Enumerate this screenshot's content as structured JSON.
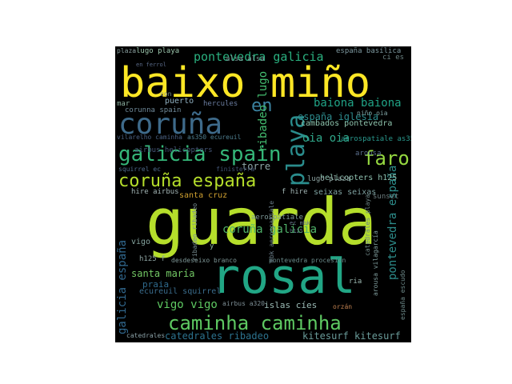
{
  "wordcloud": {
    "background": "#000000",
    "words": [
      {
        "text": "guarda",
        "color": "#b5de2b"
      },
      {
        "text": "baixo miño",
        "color": "#fde725"
      },
      {
        "text": "rosal",
        "color": "#21a685"
      },
      {
        "text": "coruña",
        "color": "#3e6a8a"
      },
      {
        "text": "playa",
        "color": "#2a8c8c"
      },
      {
        "text": "galicia spain",
        "color": "#35b779"
      },
      {
        "text": "coruña españa",
        "color": "#b5de2b"
      },
      {
        "text": "caminha caminha",
        "color": "#5ec962"
      },
      {
        "text": "faro",
        "color": "#95d840"
      },
      {
        "text": "en",
        "color": "#3b82a0"
      },
      {
        "text": "pontevedra galicia",
        "color": "#2ab07f"
      },
      {
        "text": "baiona baiona",
        "color": "#20a386"
      },
      {
        "text": "coruña galicia",
        "color": "#50b36a"
      },
      {
        "text": "ribadeo lugo",
        "color": "#44bf70"
      },
      {
        "text": "españa iglesia",
        "color": "#2c8a8c"
      },
      {
        "text": "oia oia",
        "color": "#30a88a"
      },
      {
        "text": "pontevedra españa",
        "color": "#2d8c8a"
      },
      {
        "text": "galicia españa",
        "color": "#31688e"
      },
      {
        "text": "vigo vigo",
        "color": "#5ec962"
      },
      {
        "text": "catedrales ribadeo",
        "color": "#2c728e"
      },
      {
        "text": "santa maría",
        "color": "#73c865"
      },
      {
        "text": "praia",
        "color": "#2f6b8e"
      },
      {
        "text": "ecureuil squirrel",
        "color": "#3a6c8c"
      },
      {
        "text": "kitesurf kitesurf",
        "color": "#6a9c9a"
      },
      {
        "text": "islas cíes",
        "color": "#9ab9b4"
      },
      {
        "text": "torre",
        "color": "#8fa8a8"
      },
      {
        "text": "cambados pontevedra",
        "color": "#8ec4ad"
      },
      {
        "text": "aerospatiale as350",
        "color": "#2a9a8e"
      },
      {
        "text": "arousa",
        "color": "#5a6e8c"
      },
      {
        "text": "helicopters h125",
        "color": "#8dbfae"
      },
      {
        "text": "lugo plaza",
        "color": "#8fa5a3"
      },
      {
        "text": "seixas seixas",
        "color": "#7ea1a0"
      },
      {
        "text": "santa cruz",
        "color": "#cfa030"
      },
      {
        "text": "hire airbus",
        "color": "#a2b4b4"
      },
      {
        "text": "f hire",
        "color": "#a3b6b5"
      },
      {
        "text": "alsa alsa",
        "color": "#7d9a9a"
      },
      {
        "text": "lugo playa",
        "color": "#9cc7ad"
      },
      {
        "text": "españa basílica",
        "color": "#7e99a0"
      },
      {
        "text": "ci es",
        "color": "#6a8080"
      },
      {
        "text": "plaza",
        "color": "#8aa0a0"
      },
      {
        "text": "puerto",
        "color": "#90b0c0"
      },
      {
        "text": "corunna spain",
        "color": "#708a9a"
      },
      {
        "text": "mar",
        "color": "#8cb0a0"
      },
      {
        "text": "hercules",
        "color": "#6b7da0"
      },
      {
        "text": "airbus helicopters",
        "color": "#47597a"
      },
      {
        "text": "squirrel ec",
        "color": "#4f6a8c"
      },
      {
        "text": "finisterra",
        "color": "#3f5070"
      },
      {
        "text": "vilarelho caminha",
        "color": "#4a6080"
      },
      {
        "text": "as350 ecureuil",
        "color": "#4f7f90"
      },
      {
        "text": "niño oia",
        "color": "#7da0a0"
      },
      {
        "text": "sunset",
        "color": "#6e7e80"
      },
      {
        "text": "vigo",
        "color": "#86a5a0"
      },
      {
        "text": "h125 f",
        "color": "#8ca2a0"
      },
      {
        "text": "desdeseixo branco",
        "color": "#7f9898"
      },
      {
        "text": "pontevedra procesión",
        "color": "#6a8a8a"
      },
      {
        "text": "ria",
        "color": "#9cb8b0"
      },
      {
        "text": "airbus a320",
        "color": "#7d8e95"
      },
      {
        "text": "orzán",
        "color": "#c08050"
      },
      {
        "text": "catedrales",
        "color": "#8aa0a6"
      },
      {
        "text": "ribadeo ribadeo",
        "color": "#7a8f95"
      },
      {
        "text": "mbk aerospatiale",
        "color": "#6a7d88"
      },
      {
        "text": "arousa vilagarcía",
        "color": "#7d9a9a"
      },
      {
        "text": "españa escudo",
        "color": "#6e8a8a"
      },
      {
        "text": "catedrales playa",
        "color": "#6d8585"
      },
      {
        "text": "aerospatiale",
        "color": "#7d9898"
      },
      {
        "text": "y",
        "color": "#8ab0a0"
      },
      {
        "text": "con",
        "color": "#7d9090"
      },
      {
        "text": "en ferrol",
        "color": "#5a6a88"
      },
      {
        "text": "ec mbk",
        "color": "#6b7a90"
      },
      {
        "text": "h125",
        "color": "#5a6e80"
      }
    ]
  }
}
